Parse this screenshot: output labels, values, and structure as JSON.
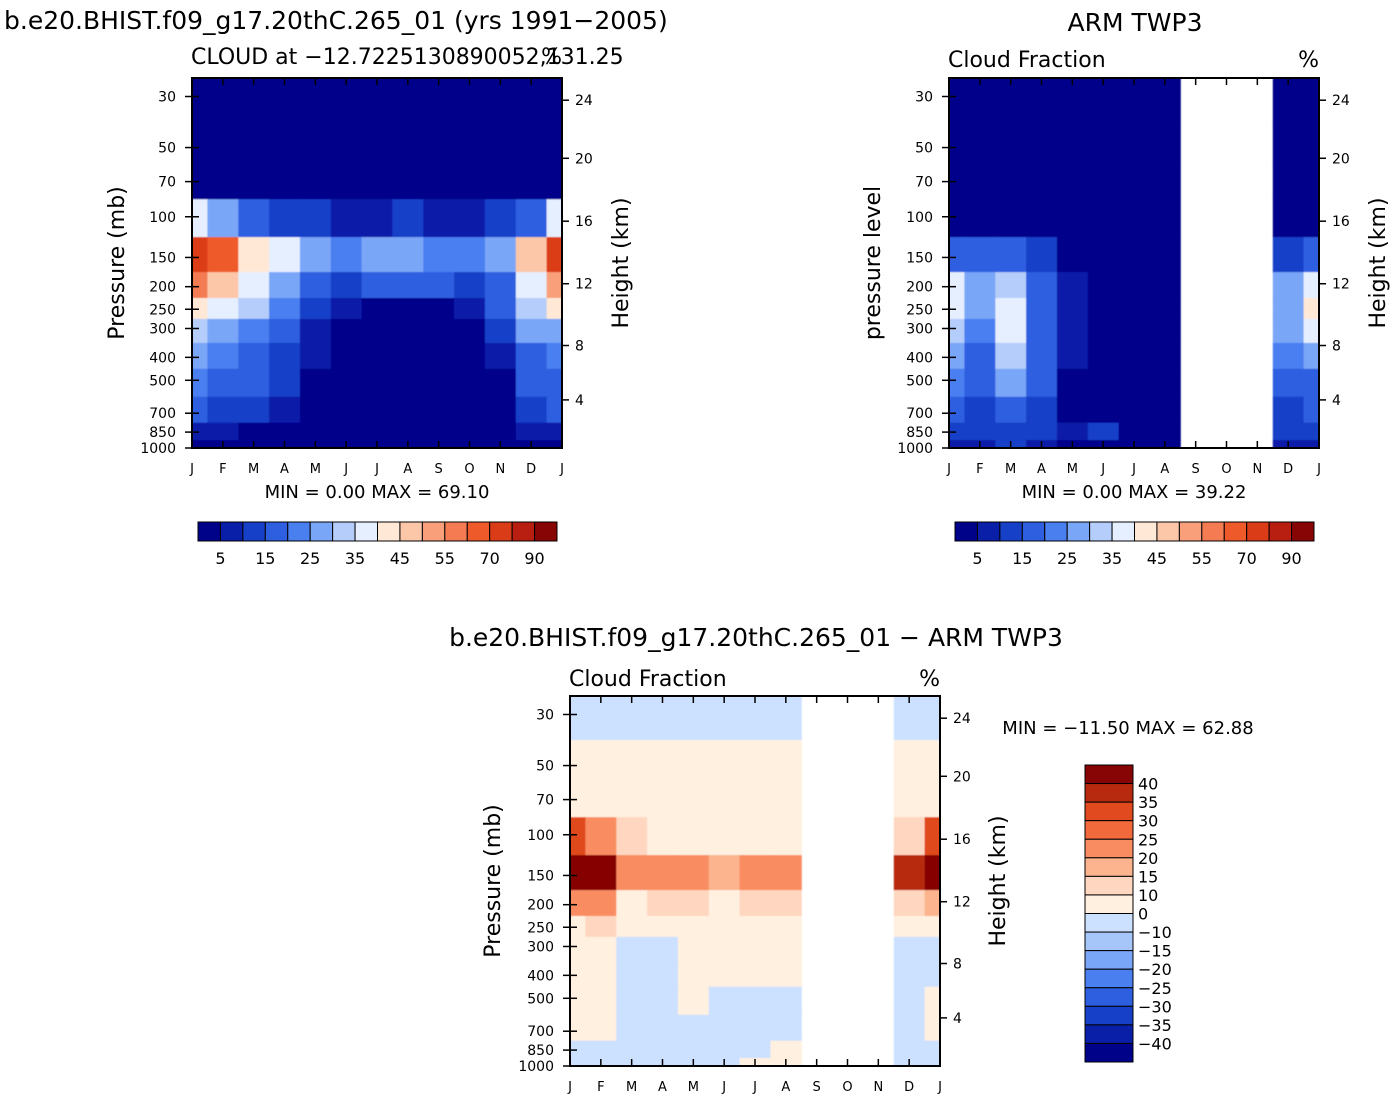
{
  "figure_title": "b.e20.BHIST.f09_g17.20thC.265_01 (yrs 1991−2005)",
  "ticks": {
    "months": [
      "J",
      "F",
      "M",
      "A",
      "M",
      "J",
      "J",
      "A",
      "S",
      "O",
      "N",
      "D",
      "J"
    ],
    "pressure": [
      30,
      50,
      70,
      100,
      150,
      200,
      250,
      300,
      400,
      500,
      700,
      850,
      1000
    ],
    "height_km": [
      4,
      8,
      12,
      16,
      20,
      24
    ]
  },
  "colors": {
    "abs_scale": [
      "#00038a",
      "#0a1fa8",
      "#1740c8",
      "#2d5fe0",
      "#4a7ff0",
      "#7aa6f7",
      "#b4cdfa",
      "#e6efff",
      "#ffe8d6",
      "#fcc7a8",
      "#f9a07a",
      "#f47b52",
      "#ee5a2a",
      "#db3c18",
      "#b81f10",
      "#870505"
    ],
    "diff_scale": [
      "#00038a",
      "#0a1fa8",
      "#1740c8",
      "#2d5fe0",
      "#4a7ff0",
      "#7aa6f7",
      "#a6c6fa",
      "#cce0ff",
      "#fff0e0",
      "#ffd6bf",
      "#fbb48e",
      "#f98c60",
      "#f26a3c",
      "#e04a1e",
      "#b82a10",
      "#870505"
    ]
  },
  "chart_data": [
    {
      "id": "model",
      "type": "heatmap",
      "title": "CLOUD at −12.7225130890052,131.25",
      "units": "%",
      "xlabel": "",
      "ylabel": "Pressure (mb)",
      "y2label": "Height (km)",
      "stats_label": "MIN = 0.00 MAX = 69.10",
      "min": 0.0,
      "max": 69.1,
      "colorbar_levels": [
        5,
        15,
        25,
        35,
        45,
        55,
        70,
        90
      ],
      "x": [
        "J",
        "F",
        "M",
        "A",
        "M",
        "J",
        "J",
        "A",
        "S",
        "O",
        "N",
        "D",
        "J"
      ],
      "levels_mb": [
        30,
        50,
        70,
        100,
        150,
        200,
        250,
        300,
        400,
        500,
        700,
        850,
        1000
      ],
      "values": [
        [
          0,
          0,
          0,
          0,
          0,
          0,
          0,
          0,
          0,
          0,
          0,
          0,
          0
        ],
        [
          0,
          0,
          0,
          0,
          0,
          0,
          0,
          0,
          0,
          0,
          0,
          0,
          0
        ],
        [
          0,
          0,
          0,
          0,
          0,
          0,
          0,
          0,
          0,
          0,
          0,
          0,
          0
        ],
        [
          32,
          22,
          12,
          7,
          5,
          3,
          4,
          5,
          4,
          4,
          5,
          14,
          32
        ],
        [
          66,
          55,
          38,
          30,
          22,
          16,
          20,
          22,
          18,
          16,
          20,
          42,
          62
        ],
        [
          50,
          44,
          34,
          24,
          14,
          8,
          10,
          12,
          10,
          9,
          14,
          30,
          48
        ],
        [
          38,
          34,
          26,
          16,
          8,
          3,
          2,
          2,
          2,
          3,
          10,
          26,
          36
        ],
        [
          26,
          24,
          18,
          10,
          4,
          1,
          0,
          0,
          0,
          1,
          6,
          20,
          24
        ],
        [
          20,
          18,
          14,
          8,
          3,
          1,
          0,
          0,
          0,
          0,
          4,
          14,
          18
        ],
        [
          16,
          14,
          10,
          6,
          2,
          0,
          0,
          0,
          0,
          0,
          2,
          10,
          14
        ],
        [
          10,
          8,
          6,
          4,
          1,
          0,
          0,
          0,
          0,
          1,
          2,
          6,
          10
        ],
        [
          4,
          3,
          2,
          2,
          1,
          1,
          2,
          2,
          1,
          1,
          1,
          3,
          4
        ],
        [
          2,
          2,
          2,
          1,
          1,
          1,
          1,
          1,
          1,
          1,
          1,
          2,
          2
        ]
      ]
    },
    {
      "id": "obs",
      "type": "heatmap",
      "figure_title": "ARM TWP3",
      "title": "Cloud Fraction",
      "units": "%",
      "ylabel": "pressure level",
      "y2label": "Height (km)",
      "stats_label": "MIN = 0.00 MAX = 39.22",
      "min": 0.0,
      "max": 39.22,
      "colorbar_levels": [
        5,
        15,
        25,
        35,
        45,
        55,
        70,
        90
      ],
      "missing_months": [
        "S",
        "O",
        "N"
      ],
      "x": [
        "J",
        "F",
        "M",
        "A",
        "M",
        "J",
        "J",
        "A",
        "S",
        "O",
        "N",
        "D",
        "J"
      ],
      "levels_mb": [
        30,
        50,
        70,
        100,
        150,
        200,
        250,
        300,
        400,
        500,
        700,
        850,
        1000
      ],
      "values": [
        [
          0,
          0,
          0,
          0,
          0,
          0,
          0,
          0,
          null,
          null,
          null,
          0,
          0
        ],
        [
          0,
          0,
          0,
          0,
          0,
          0,
          0,
          0,
          null,
          null,
          null,
          0,
          0
        ],
        [
          0,
          0,
          0,
          0,
          0,
          0,
          0,
          0,
          null,
          null,
          null,
          0,
          0
        ],
        [
          0,
          0,
          1,
          0,
          0,
          0,
          0,
          0,
          null,
          null,
          null,
          0,
          0
        ],
        [
          12,
          10,
          14,
          6,
          2,
          0,
          0,
          0,
          null,
          null,
          null,
          6,
          14
        ],
        [
          30,
          22,
          26,
          12,
          4,
          0,
          0,
          0,
          null,
          null,
          null,
          20,
          32
        ],
        [
          32,
          22,
          34,
          14,
          4,
          0,
          0,
          0,
          null,
          null,
          null,
          24,
          36
        ],
        [
          26,
          18,
          30,
          14,
          4,
          0,
          0,
          0,
          null,
          null,
          null,
          22,
          30
        ],
        [
          20,
          14,
          26,
          12,
          3,
          0,
          0,
          0,
          null,
          null,
          null,
          16,
          20
        ],
        [
          16,
          12,
          22,
          10,
          2,
          0,
          0,
          0,
          null,
          null,
          null,
          12,
          14
        ],
        [
          10,
          8,
          12,
          6,
          2,
          2,
          0,
          0,
          null,
          null,
          null,
          8,
          10
        ],
        [
          6,
          6,
          8,
          6,
          4,
          5,
          1,
          0,
          null,
          null,
          null,
          5,
          6
        ],
        [
          4,
          4,
          5,
          3,
          2,
          2,
          1,
          1,
          null,
          null,
          null,
          3,
          4
        ]
      ]
    },
    {
      "id": "diff",
      "type": "heatmap",
      "figure_title": "b.e20.BHIST.f09_g17.20thC.265_01 − ARM TWP3",
      "title": "Cloud Fraction",
      "units": "%",
      "ylabel": "Pressure (mb)",
      "y2label": "Height (km)",
      "stats_label": "MIN = −11.50 MAX = 62.88",
      "min": -11.5,
      "max": 62.88,
      "colorbar_levels": [
        40,
        35,
        30,
        25,
        20,
        15,
        10,
        0,
        -10,
        -15,
        -20,
        -25,
        -30,
        -35,
        -40
      ],
      "missing_months": [
        "S",
        "O",
        "N"
      ],
      "x": [
        "J",
        "F",
        "M",
        "A",
        "M",
        "J",
        "J",
        "A",
        "S",
        "O",
        "N",
        "D",
        "J"
      ],
      "levels_mb": [
        30,
        50,
        70,
        100,
        150,
        200,
        250,
        300,
        400,
        500,
        700,
        850,
        1000
      ],
      "values": [
        [
          -2,
          -2,
          -2,
          -2,
          -2,
          -2,
          -2,
          -2,
          null,
          null,
          null,
          -2,
          -2
        ],
        [
          2,
          2,
          2,
          2,
          2,
          2,
          2,
          2,
          null,
          null,
          null,
          2,
          2
        ],
        [
          3,
          3,
          3,
          3,
          3,
          3,
          3,
          3,
          null,
          null,
          null,
          3,
          3
        ],
        [
          32,
          22,
          12,
          7,
          5,
          3,
          4,
          5,
          null,
          null,
          null,
          14,
          32
        ],
        [
          54,
          45,
          24,
          24,
          20,
          16,
          20,
          22,
          null,
          null,
          null,
          36,
          48
        ],
        [
          20,
          22,
          8,
          12,
          10,
          8,
          10,
          12,
          null,
          null,
          null,
          10,
          16
        ],
        [
          6,
          12,
          4,
          2,
          4,
          3,
          2,
          2,
          null,
          null,
          null,
          2,
          0
        ],
        [
          0,
          6,
          -2,
          -4,
          0,
          1,
          0,
          0,
          null,
          null,
          null,
          -2,
          -6
        ],
        [
          0,
          4,
          -5,
          -4,
          0,
          1,
          0,
          0,
          null,
          null,
          null,
          -2,
          -2
        ],
        [
          4,
          2,
          -2,
          -4,
          0,
          -1,
          -3,
          -3,
          null,
          null,
          null,
          -2,
          0
        ],
        [
          0,
          0,
          -6,
          -2,
          -1,
          -2,
          -3,
          -3,
          null,
          null,
          null,
          -2,
          0
        ],
        [
          -2,
          -3,
          -6,
          -4,
          -3,
          -4,
          -1,
          2,
          null,
          null,
          null,
          -2,
          -2
        ],
        [
          -2,
          -2,
          -3,
          -2,
          -1,
          -1,
          0,
          0,
          null,
          null,
          null,
          -1,
          -2
        ]
      ]
    }
  ]
}
